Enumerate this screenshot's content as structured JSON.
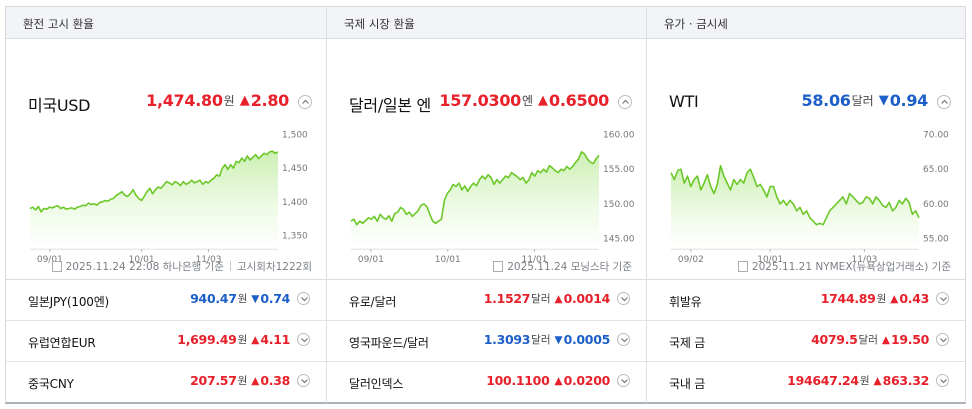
{
  "panels": [
    {
      "header": "환전 고시 환율",
      "title": "미국USD",
      "price": "1,474.80",
      "unit": "원",
      "direction": "up",
      "arrow": "▲",
      "change": "2.80",
      "source_date": "2025.11.24 22:08",
      "source_name": "하나은행 기준",
      "source_extra": "고시회차1222회",
      "chart_data": {
        "type": "area",
        "x_ticks": [
          "09/01",
          "10/01",
          "11/03"
        ],
        "y_ticks": [
          1350,
          1400,
          1450,
          1500
        ],
        "ylim": [
          1330,
          1505
        ],
        "values": [
          1390,
          1392,
          1388,
          1393,
          1385,
          1390,
          1389,
          1392,
          1391,
          1393,
          1394,
          1390,
          1392,
          1389,
          1390,
          1391,
          1389,
          1392,
          1393,
          1395,
          1394,
          1398,
          1396,
          1397,
          1395,
          1399,
          1400,
          1402,
          1401,
          1404,
          1405,
          1410,
          1412,
          1415,
          1410,
          1408,
          1412,
          1418,
          1410,
          1405,
          1402,
          1408,
          1415,
          1420,
          1412,
          1418,
          1422,
          1420,
          1425,
          1430,
          1428,
          1425,
          1430,
          1428,
          1424,
          1430,
          1426,
          1428,
          1432,
          1428,
          1430,
          1432,
          1426,
          1430,
          1428,
          1432,
          1435,
          1440,
          1438,
          1450,
          1455,
          1448,
          1455,
          1450,
          1460,
          1458,
          1465,
          1460,
          1468,
          1462,
          1466,
          1470,
          1464,
          1468,
          1472,
          1470,
          1474,
          1475,
          1472,
          1474
        ]
      }
    },
    {
      "header": "국제 시장 환율",
      "title": "달러/일본 엔",
      "price": "157.0300",
      "unit": "엔",
      "direction": "up",
      "arrow": "▲",
      "change": "0.6500",
      "source_date": "2025.11.24",
      "source_name": "모닝스타 기준",
      "source_extra": "",
      "chart_data": {
        "type": "area",
        "x_ticks": [
          "09/01",
          "10/01",
          "11/01"
        ],
        "y_ticks": [
          145,
          150,
          155,
          160
        ],
        "ylim": [
          143.5,
          160.5
        ],
        "values": [
          147.5,
          147.8,
          147.0,
          147.5,
          147.2,
          147.6,
          148.0,
          147.8,
          148.2,
          147.5,
          148.5,
          148.0,
          147.8,
          148.3,
          147.5,
          148.6,
          148.8,
          149.5,
          149.2,
          148.5,
          148.8,
          148.2,
          148.6,
          149.0,
          149.8,
          150.0,
          149.6,
          148.5,
          147.5,
          147.2,
          147.5,
          147.8,
          150.5,
          151.5,
          152.0,
          152.8,
          152.5,
          153.0,
          152.0,
          152.6,
          151.8,
          152.5,
          153.0,
          152.6,
          153.5,
          154.0,
          153.6,
          154.2,
          153.8,
          152.8,
          153.5,
          153.0,
          153.5,
          154.0,
          153.8,
          154.5,
          154.2,
          153.9,
          153.5,
          153.8,
          153.0,
          153.5,
          154.5,
          154.0,
          154.8,
          154.5,
          155.0,
          154.6,
          155.5,
          155.2,
          154.8,
          154.5,
          155.0,
          154.8,
          155.4,
          155.0,
          155.4,
          156.0,
          156.5,
          157.5,
          157.2,
          156.5,
          156.0,
          155.8,
          156.5,
          157.0
        ]
      }
    },
    {
      "header": "유가 · 금시세",
      "title": "WTI",
      "price": "58.06",
      "unit": "달러",
      "direction": "down",
      "arrow": "▼",
      "change": "0.94",
      "source_date": "2025.11.21",
      "source_name": "NYMEX(뉴욕상업거래소) 기준",
      "source_extra": "",
      "chart_data": {
        "type": "area",
        "x_ticks": [
          "09/02",
          "10/01",
          "11/03"
        ],
        "y_ticks": [
          55,
          60,
          65,
          70
        ],
        "ylim": [
          53.5,
          70.5
        ],
        "values": [
          64.5,
          63.5,
          64.8,
          65.0,
          63.0,
          64.0,
          62.5,
          63.5,
          64.0,
          62.0,
          63.0,
          64.2,
          62.5,
          61.5,
          62.8,
          65.5,
          64.0,
          63.0,
          62.0,
          63.5,
          62.8,
          63.5,
          63.0,
          64.5,
          65.0,
          63.8,
          62.5,
          62.8,
          62.0,
          61.0,
          62.5,
          62.5,
          61.0,
          60.0,
          60.5,
          59.8,
          60.5,
          60.0,
          59.0,
          59.5,
          58.5,
          59.0,
          58.0,
          57.5,
          57.0,
          57.2,
          57.0,
          58.0,
          59.0,
          59.5,
          60.0,
          60.5,
          61.0,
          60.0,
          61.5,
          61.0,
          60.5,
          60.0,
          60.2,
          61.0,
          60.8,
          60.0,
          61.0,
          60.5,
          59.8,
          59.5,
          60.2,
          59.0,
          59.5,
          60.5,
          60.0,
          60.8,
          60.2,
          58.5,
          59.0,
          58.0
        ]
      }
    }
  ],
  "rows": [
    [
      {
        "name": "일본JPY(100엔)",
        "price": "940.47",
        "unit": "원",
        "direction": "down",
        "arrow": "▼",
        "change": "0.74"
      },
      {
        "name": "유로/달러",
        "price": "1.1527",
        "unit": "달러",
        "direction": "up",
        "arrow": "▲",
        "change": "0.0014"
      },
      {
        "name": "휘발유",
        "price": "1744.89",
        "unit": "원",
        "direction": "up",
        "arrow": "▲",
        "change": "0.43"
      }
    ],
    [
      {
        "name": "유럽연합EUR",
        "price": "1,699.49",
        "unit": "원",
        "direction": "up",
        "arrow": "▲",
        "change": "4.11"
      },
      {
        "name": "영국파운드/달러",
        "price": "1.3093",
        "unit": "달러",
        "direction": "down",
        "arrow": "▼",
        "change": "0.0005"
      },
      {
        "name": "국제 금",
        "price": "4079.5",
        "unit": "달러",
        "direction": "up",
        "arrow": "▲",
        "change": "19.50"
      }
    ],
    [
      {
        "name": "중국CNY",
        "price": "207.57",
        "unit": "원",
        "direction": "up",
        "arrow": "▲",
        "change": "0.38"
      },
      {
        "name": "달러인덱스",
        "price": "100.1100",
        "unit": "",
        "direction": "up",
        "arrow": "▲",
        "change": "0.0200"
      },
      {
        "name": "국내 금",
        "price": "194647.24",
        "unit": "원",
        "direction": "up",
        "arrow": "▲",
        "change": "863.32"
      }
    ]
  ],
  "colors": {
    "up": "#e8202a",
    "down": "#1d5fc8",
    "line": "#6cc82a",
    "fill_top": "#c9efae",
    "fill_bottom": "#ffffff"
  }
}
